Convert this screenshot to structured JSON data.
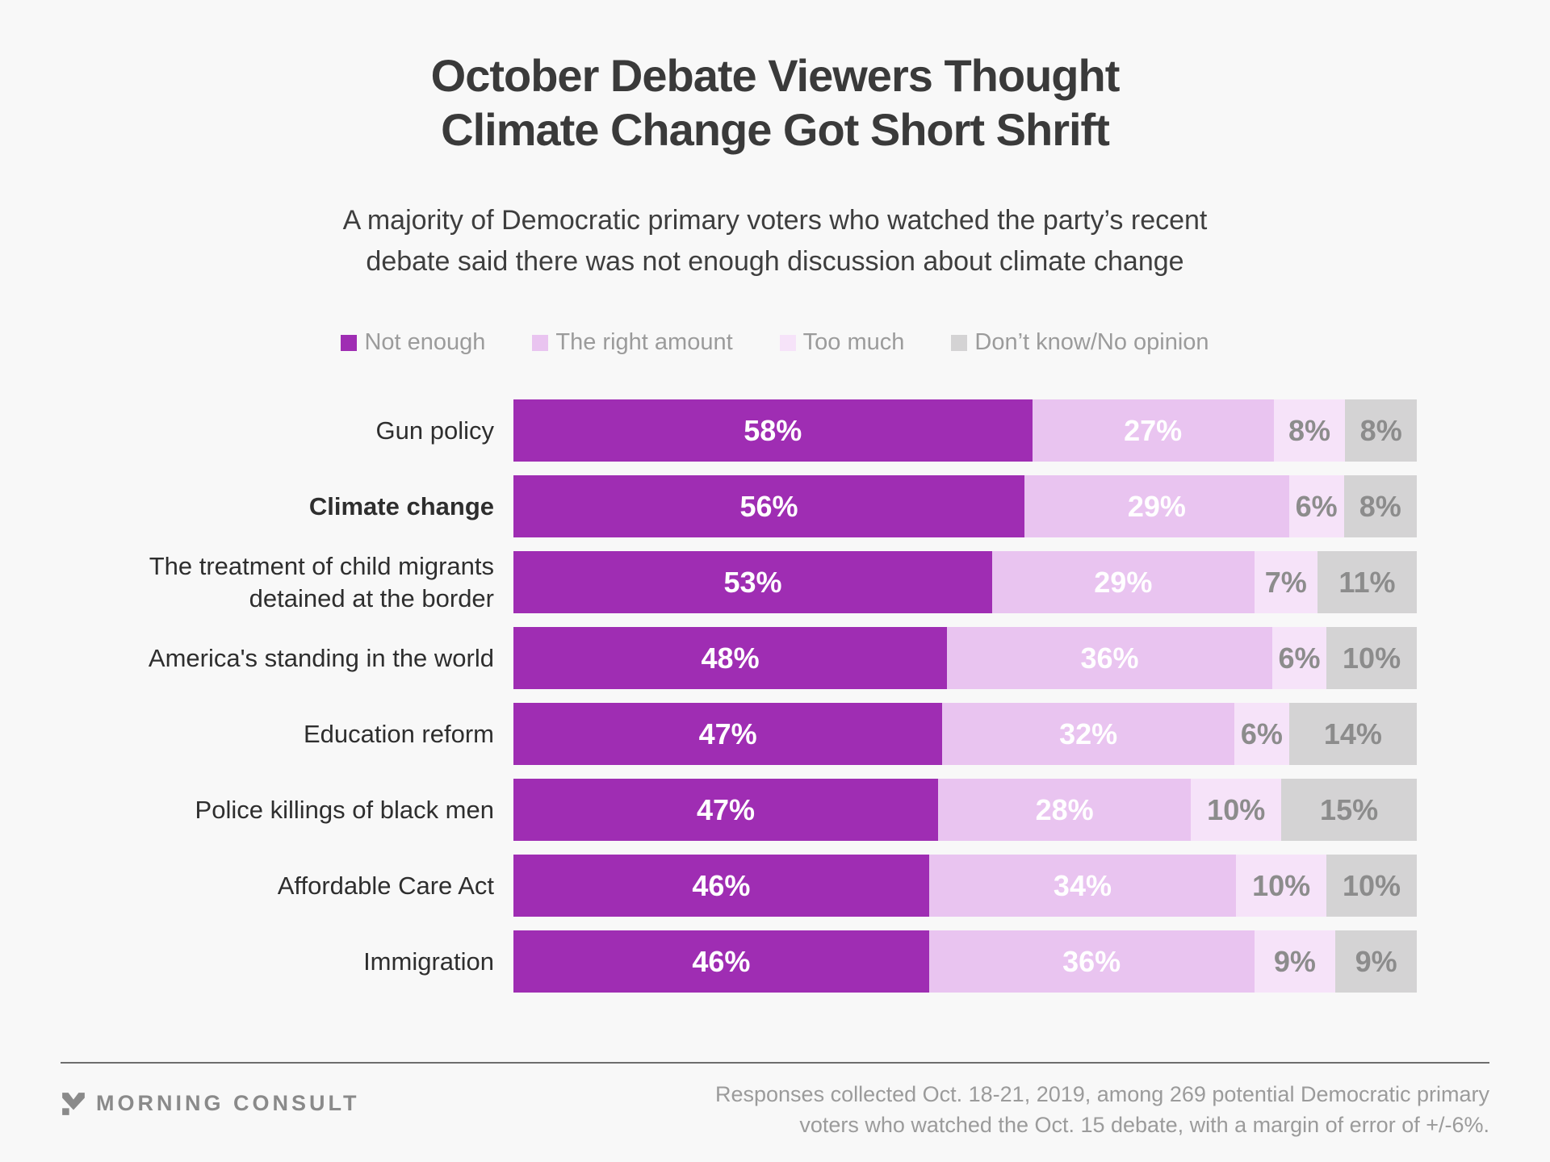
{
  "page": {
    "background": "#F8F8F8"
  },
  "header": {
    "title_lines": [
      "October Debate Viewers Thought",
      "Climate Change Got Short Shrift"
    ],
    "subtitle_lines": [
      "A majority of Democratic primary voters who watched the party’s recent",
      "debate said there was not enough discussion about climate change"
    ]
  },
  "legend": [
    {
      "label": "Not enough",
      "color": "#9F2DB3",
      "text_color": "#FFFFFF"
    },
    {
      "label": "The right amount",
      "color": "#E9C4F0",
      "text_color": "#FFFFFF"
    },
    {
      "label": "Too much",
      "color": "#F6E3F9",
      "text_color": "#8C8C8C"
    },
    {
      "label": "Don’t know/No opinion",
      "color": "#D4D3D4",
      "text_color": "#8C8C8C"
    }
  ],
  "chart_data": {
    "type": "bar",
    "stacked": true,
    "orientation": "horizontal",
    "unit": "%",
    "title": "October Debate Viewers Thought Climate Change Got Short Shrift",
    "legend_position": "top",
    "series_names": [
      "Not enough",
      "The right amount",
      "Too much",
      "Don't know/No opinion"
    ],
    "categories": [
      "Gun policy",
      "Climate change",
      "The treatment of child migrants detained at the border",
      "America's standing in the world",
      "Education reform",
      "Police killings of black men",
      "Affordable Care Act",
      "Immigration"
    ],
    "rows": [
      {
        "label_lines": [
          "Gun policy"
        ],
        "bold": false,
        "values": [
          58,
          27,
          8,
          8
        ]
      },
      {
        "label_lines": [
          "Climate change"
        ],
        "bold": true,
        "values": [
          56,
          29,
          6,
          8
        ]
      },
      {
        "label_lines": [
          "The treatment of child migrants",
          "detained at the border"
        ],
        "bold": false,
        "values": [
          53,
          29,
          7,
          11
        ]
      },
      {
        "label_lines": [
          "America's standing in the world"
        ],
        "bold": false,
        "values": [
          48,
          36,
          6,
          10
        ]
      },
      {
        "label_lines": [
          "Education reform"
        ],
        "bold": false,
        "values": [
          47,
          32,
          6,
          14
        ]
      },
      {
        "label_lines": [
          "Police killings of black men"
        ],
        "bold": false,
        "values": [
          47,
          28,
          10,
          15
        ]
      },
      {
        "label_lines": [
          "Affordable Care Act"
        ],
        "bold": false,
        "values": [
          46,
          34,
          10,
          10
        ]
      },
      {
        "label_lines": [
          "Immigration"
        ],
        "bold": false,
        "values": [
          46,
          36,
          9,
          9
        ]
      }
    ]
  },
  "footer": {
    "brand": "MORNING CONSULT",
    "note_lines": [
      "Responses collected Oct. 18-21, 2019, among 269 potential Democratic primary",
      "voters who watched the Oct. 15 debate, with a margin of error of +/-6%."
    ]
  }
}
